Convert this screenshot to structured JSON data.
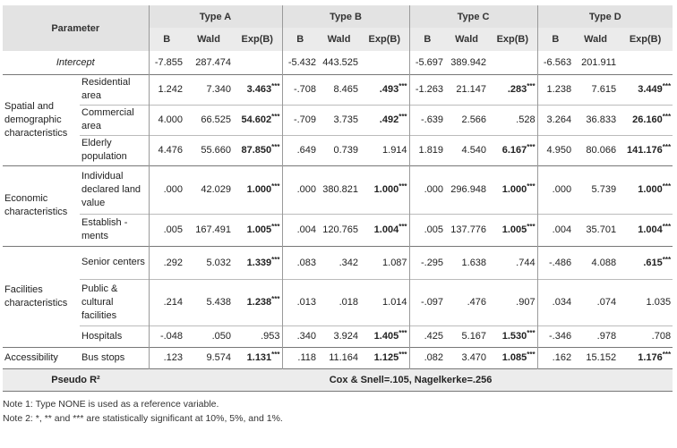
{
  "header": {
    "parameter": "Parameter",
    "types": [
      "Type A",
      "Type B",
      "Type C",
      "Type D"
    ],
    "sub": [
      "B",
      "Wald",
      "Exp(B)"
    ]
  },
  "intercept": {
    "label": "Intercept",
    "values": [
      [
        "-7.855",
        "287.474",
        ""
      ],
      [
        "-5.432",
        "443.525",
        ""
      ],
      [
        "-5.697",
        "389.942",
        ""
      ],
      [
        "-6.563",
        "201.911",
        ""
      ]
    ]
  },
  "categories": {
    "spatial": "Spatial and demographic characteristics",
    "economic": "Economic characteristics",
    "facilities": "Facilities characteristics",
    "accessibility": "Accessibility"
  },
  "rows": {
    "residential": {
      "label": "Residential area",
      "values": [
        [
          "1.242",
          "7.340",
          "3.463",
          "***"
        ],
        [
          "-.708",
          "8.465",
          ".493",
          "***"
        ],
        [
          "-1.263",
          "21.147",
          ".283",
          "***"
        ],
        [
          "1.238",
          "7.615",
          "3.449",
          "***"
        ]
      ]
    },
    "commercial": {
      "label": "Commercial area",
      "values": [
        [
          "4.000",
          "66.525",
          "54.602",
          "***"
        ],
        [
          "-.709",
          "3.735",
          ".492",
          "***"
        ],
        [
          "-.639",
          "2.566",
          ".528",
          ""
        ],
        [
          "3.264",
          "36.833",
          "26.160",
          "***"
        ]
      ]
    },
    "elderly": {
      "label": "Elderly population",
      "values": [
        [
          "4.476",
          "55.660",
          "87.850",
          "***"
        ],
        [
          ".649",
          "0.739",
          "1.914",
          ""
        ],
        [
          "1.819",
          "4.540",
          "6.167",
          "***"
        ],
        [
          "4.950",
          "80.066",
          "141.176",
          "***"
        ]
      ]
    },
    "land": {
      "label": "Individual declared land value",
      "values": [
        [
          ".000",
          "42.029",
          "1.000",
          "***"
        ],
        [
          ".000",
          "380.821",
          "1.000",
          "***"
        ],
        [
          ".000",
          "296.948",
          "1.000",
          "***"
        ],
        [
          ".000",
          "5.739",
          "1.000",
          "***"
        ]
      ]
    },
    "establish": {
      "label": "Establish -ments",
      "values": [
        [
          ".005",
          "167.491",
          "1.005",
          "***"
        ],
        [
          ".004",
          "120.765",
          "1.004",
          "***"
        ],
        [
          ".005",
          "137.776",
          "1.005",
          "***"
        ],
        [
          ".004",
          "35.701",
          "1.004",
          "***"
        ]
      ]
    },
    "senior": {
      "label": "Senior centers",
      "values": [
        [
          ".292",
          "5.032",
          "1.339",
          "***"
        ],
        [
          ".083",
          ".342",
          "1.087",
          ""
        ],
        [
          "-.295",
          "1.638",
          ".744",
          ""
        ],
        [
          "-.486",
          "4.088",
          ".615",
          "***"
        ]
      ]
    },
    "public": {
      "label": "Public & cultural facilities",
      "values": [
        [
          ".214",
          "5.438",
          "1.238",
          "***"
        ],
        [
          ".013",
          ".018",
          "1.014",
          ""
        ],
        [
          "-.097",
          ".476",
          ".907",
          ""
        ],
        [
          ".034",
          ".074",
          "1.035",
          ""
        ]
      ]
    },
    "hospitals": {
      "label": "Hospitals",
      "values": [
        [
          "-.048",
          ".050",
          ".953",
          ""
        ],
        [
          ".340",
          "3.924",
          "1.405",
          "***"
        ],
        [
          ".425",
          "5.167",
          "1.530",
          "***"
        ],
        [
          "-.346",
          ".978",
          ".708",
          ""
        ]
      ]
    },
    "bus": {
      "label": "Bus stops",
      "values": [
        [
          ".123",
          "9.574",
          "1.131",
          "***"
        ],
        [
          ".118",
          "11.164",
          "1.125",
          "***"
        ],
        [
          ".082",
          "3.470",
          "1.085",
          "***"
        ],
        [
          ".162",
          "15.152",
          "1.176",
          "***"
        ]
      ]
    }
  },
  "pseudo": {
    "label": "Pseudo R²",
    "value": "Cox & Snell=.105, Nagelkerke=.256"
  },
  "notes": [
    "Note 1: Type NONE is used as a reference variable.",
    "Note 2: *, ** and *** are statistically significant at 10%, 5%, and 1%."
  ]
}
